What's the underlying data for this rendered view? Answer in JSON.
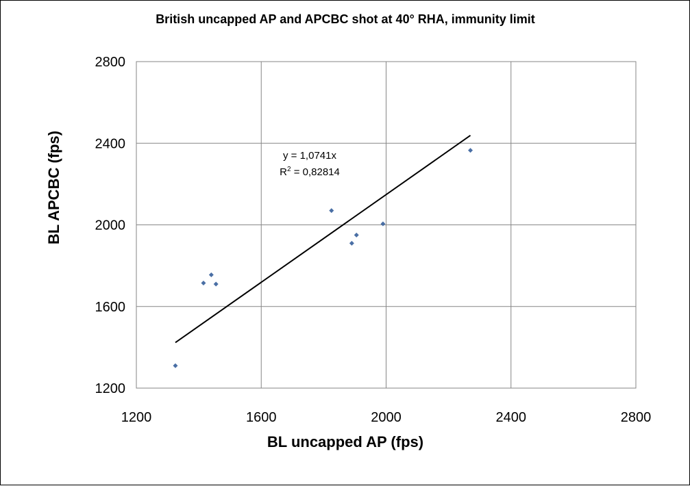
{
  "chart_data": {
    "type": "scatter",
    "title": "British uncapped AP and APCBC shot at 40° RHA, immunity limit",
    "xlabel": "BL uncapped AP (fps)",
    "ylabel": "BL APCBC (fps)",
    "xlim": [
      1200,
      2800
    ],
    "ylim": [
      1200,
      2800
    ],
    "xticks": [
      1200,
      1600,
      2000,
      2400,
      2800
    ],
    "yticks": [
      1200,
      1600,
      2000,
      2400,
      2800
    ],
    "xtick_labels": [
      "1200",
      "1600",
      "2000",
      "2400",
      "2800"
    ],
    "ytick_labels": [
      "1200",
      "1600",
      "2000",
      "2400",
      "2800"
    ],
    "grid": true,
    "legend": "none",
    "marker_color": "#4a6fa5",
    "series": [
      {
        "points": [
          {
            "x": 1325,
            "y": 1310
          },
          {
            "x": 1415,
            "y": 1715
          },
          {
            "x": 1440,
            "y": 1755
          },
          {
            "x": 1455,
            "y": 1710
          },
          {
            "x": 1825,
            "y": 2070
          },
          {
            "x": 1890,
            "y": 1910
          },
          {
            "x": 1905,
            "y": 1950
          },
          {
            "x": 1990,
            "y": 2005
          },
          {
            "x": 2270,
            "y": 2365
          }
        ]
      }
    ],
    "trendline": {
      "slope": 1.0741,
      "x_range": [
        1325,
        2270
      ],
      "color": "#000000",
      "equation_label": "y = 1,0741x",
      "r2_prefix": "R",
      "r2_exponent": "2",
      "r2_value": " = 0,82814"
    }
  }
}
